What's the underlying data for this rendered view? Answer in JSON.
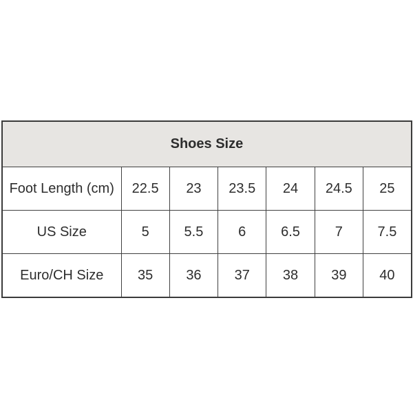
{
  "table": {
    "title": "Shoes Size",
    "rows": [
      {
        "label": "Foot Length (cm)",
        "values": [
          "22.5",
          "23",
          "23.5",
          "24",
          "24.5",
          "25"
        ]
      },
      {
        "label": "US Size",
        "values": [
          "5",
          "5.5",
          "6",
          "6.5",
          "7",
          "7.5"
        ]
      },
      {
        "label": "Euro/CH Size",
        "values": [
          "35",
          "36",
          "37",
          "38",
          "39",
          "40"
        ]
      }
    ]
  },
  "colors": {
    "header_bg": "#e7e5e2",
    "border": "#3a3a3a",
    "text": "#2d2d2d",
    "page_bg": "#ffffff"
  }
}
